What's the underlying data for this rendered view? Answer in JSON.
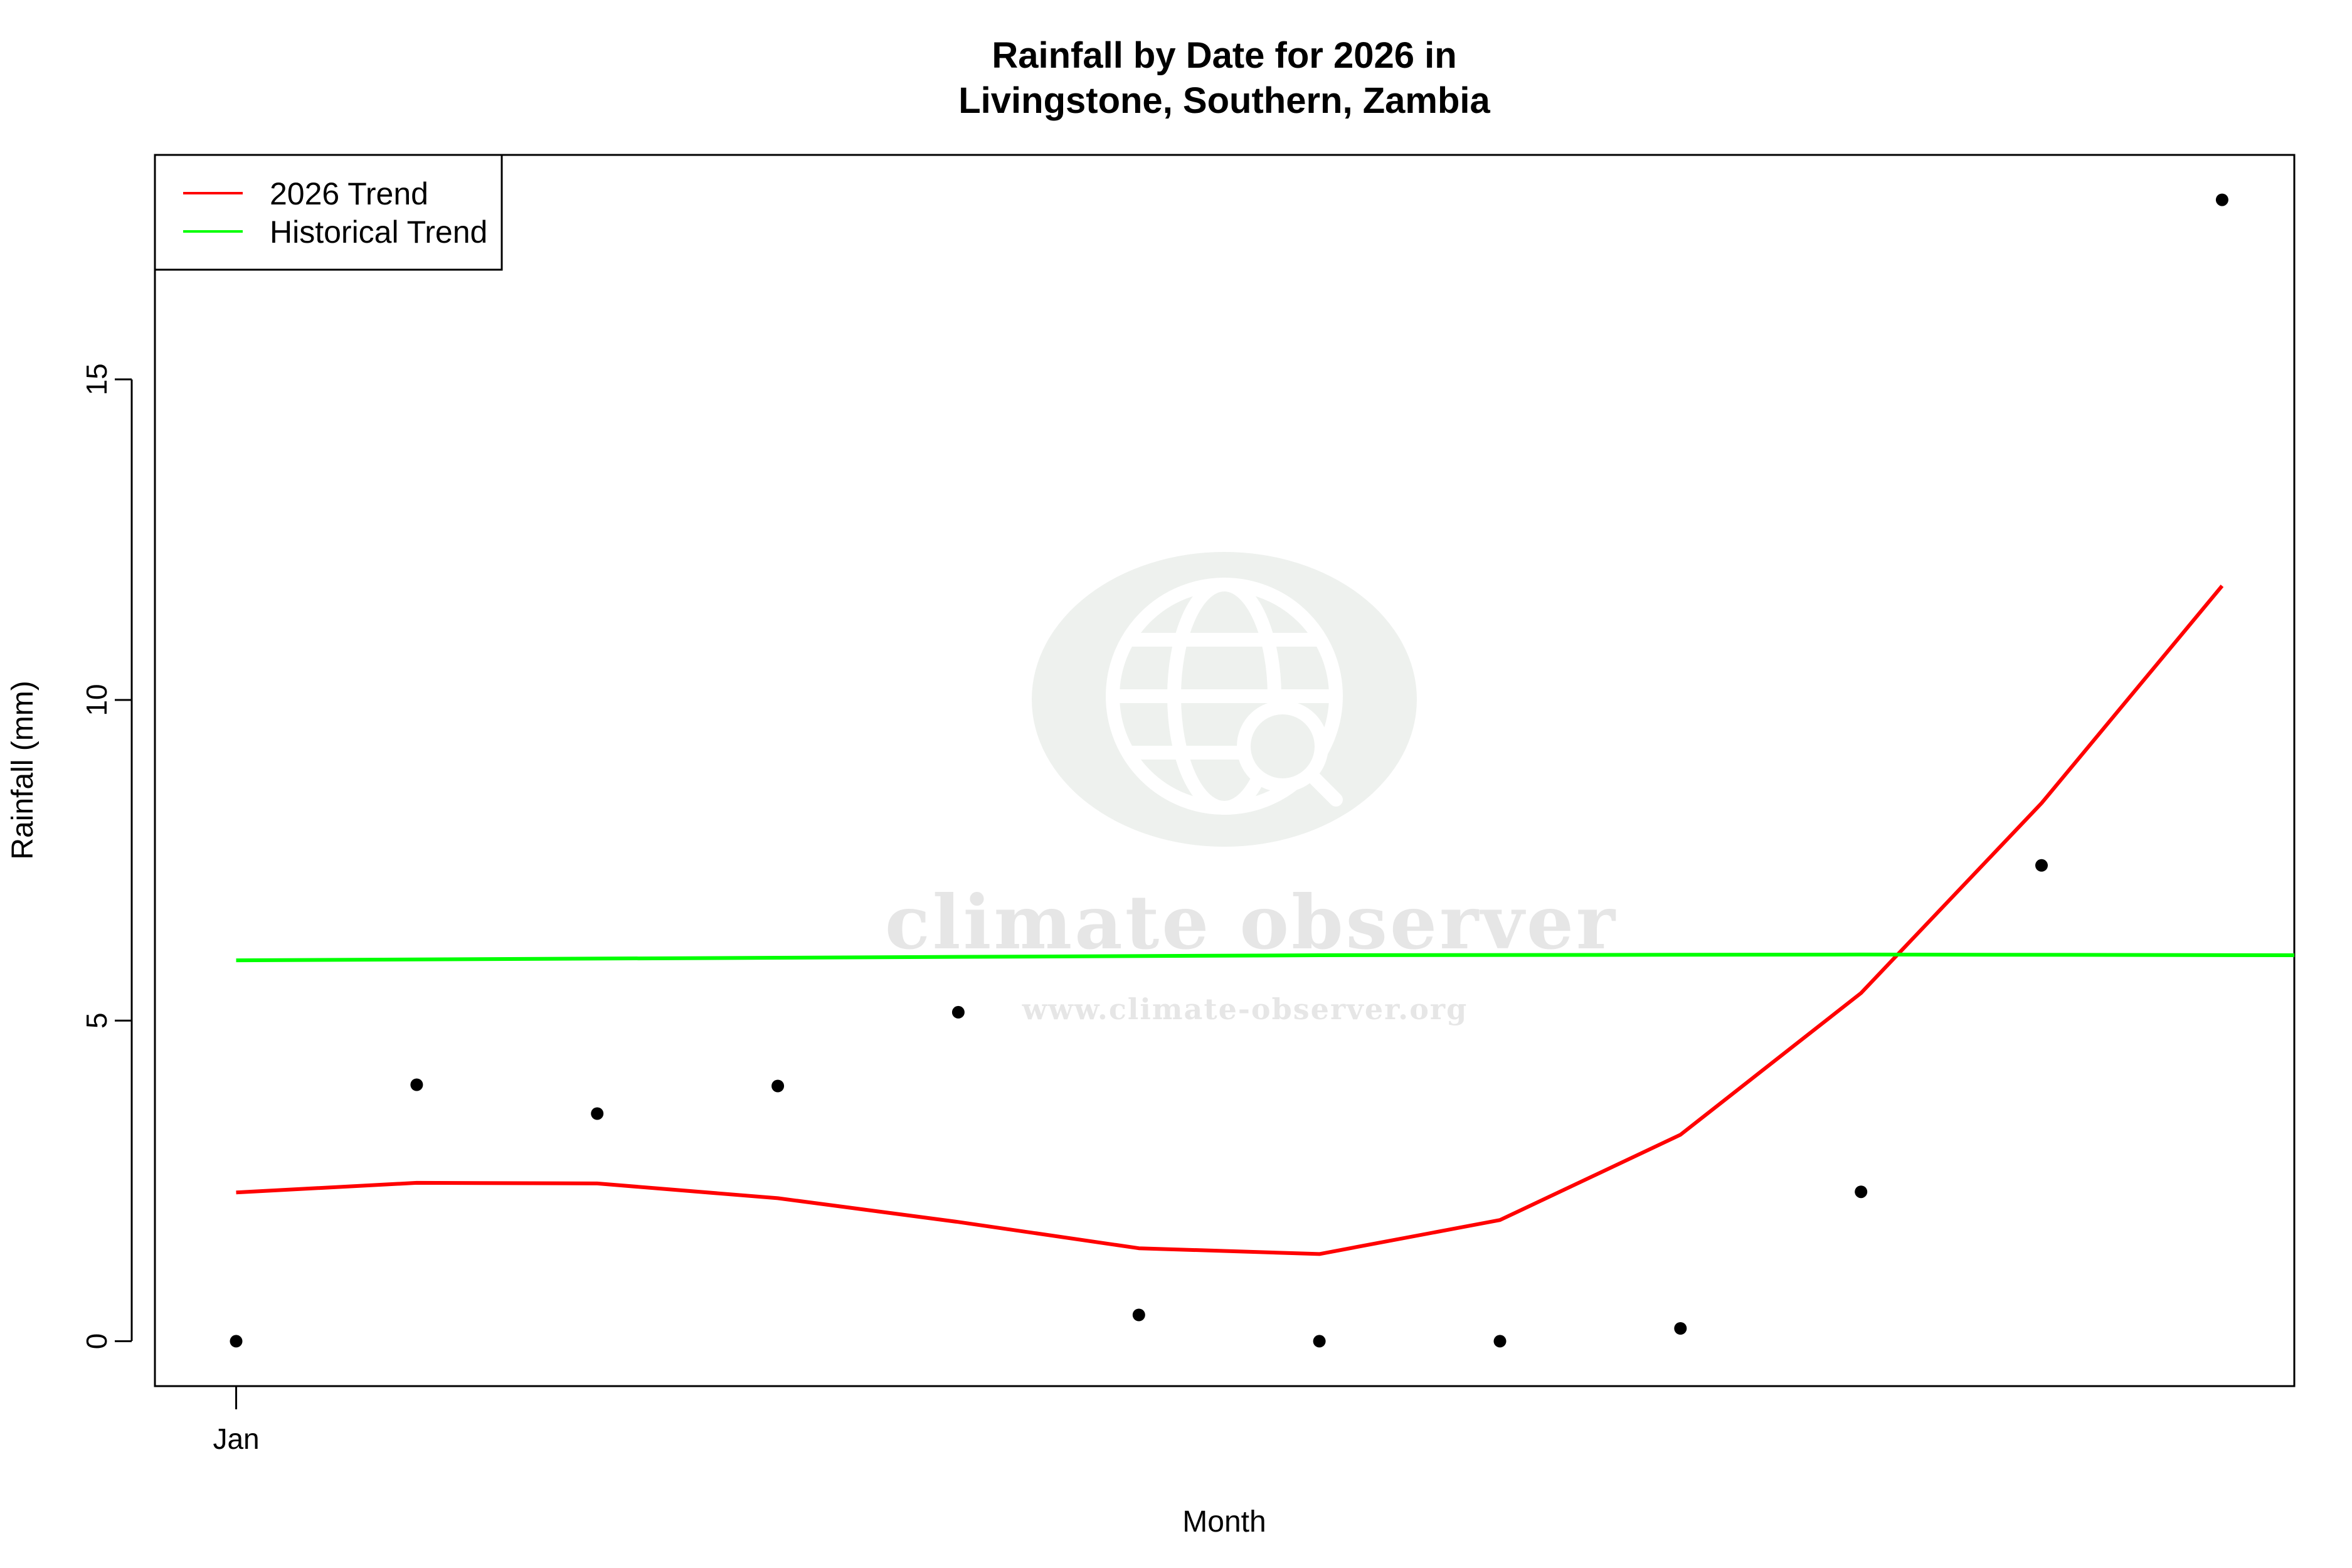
{
  "chart_data": {
    "type": "line",
    "title_line1": "Rainfall by Date for 2026 in",
    "title_line2": "Livingstone, Southern, Zambia",
    "xlabel": "Month",
    "ylabel": "Rainfall (mm)",
    "ylim": [
      -0.7,
      18.5
    ],
    "y_ticks": [
      0,
      5,
      10,
      15
    ],
    "x_tick_labels": [
      {
        "x": 1,
        "label": "Jan"
      }
    ],
    "xlim": [
      0.55,
      12.4
    ],
    "points": {
      "x": [
        1,
        2,
        3,
        4,
        5,
        6,
        7,
        8,
        9,
        10,
        11,
        12
      ],
      "y": [
        0.0,
        4.0,
        3.55,
        3.98,
        5.13,
        0.41,
        0.0,
        0.0,
        0.2,
        2.33,
        7.42,
        17.8
      ]
    },
    "series": [
      {
        "name": "2026 Trend",
        "color": "#ff0000",
        "x": [
          1,
          2,
          3,
          4,
          5,
          6,
          7,
          8,
          9,
          10,
          11,
          12
        ],
        "y": [
          2.32,
          2.47,
          2.46,
          2.23,
          1.86,
          1.45,
          1.36,
          1.89,
          3.22,
          5.43,
          8.39,
          11.78
        ]
      },
      {
        "name": "Historical Trend",
        "color": "#00ff00",
        "x": [
          1,
          4,
          7,
          10,
          12.4
        ],
        "y": [
          5.94,
          5.98,
          6.02,
          6.03,
          6.02
        ]
      }
    ],
    "legend_position": "top-left",
    "grid": false
  },
  "watermark": {
    "name": "climate observer",
    "url": "www.climate-observer.org"
  }
}
